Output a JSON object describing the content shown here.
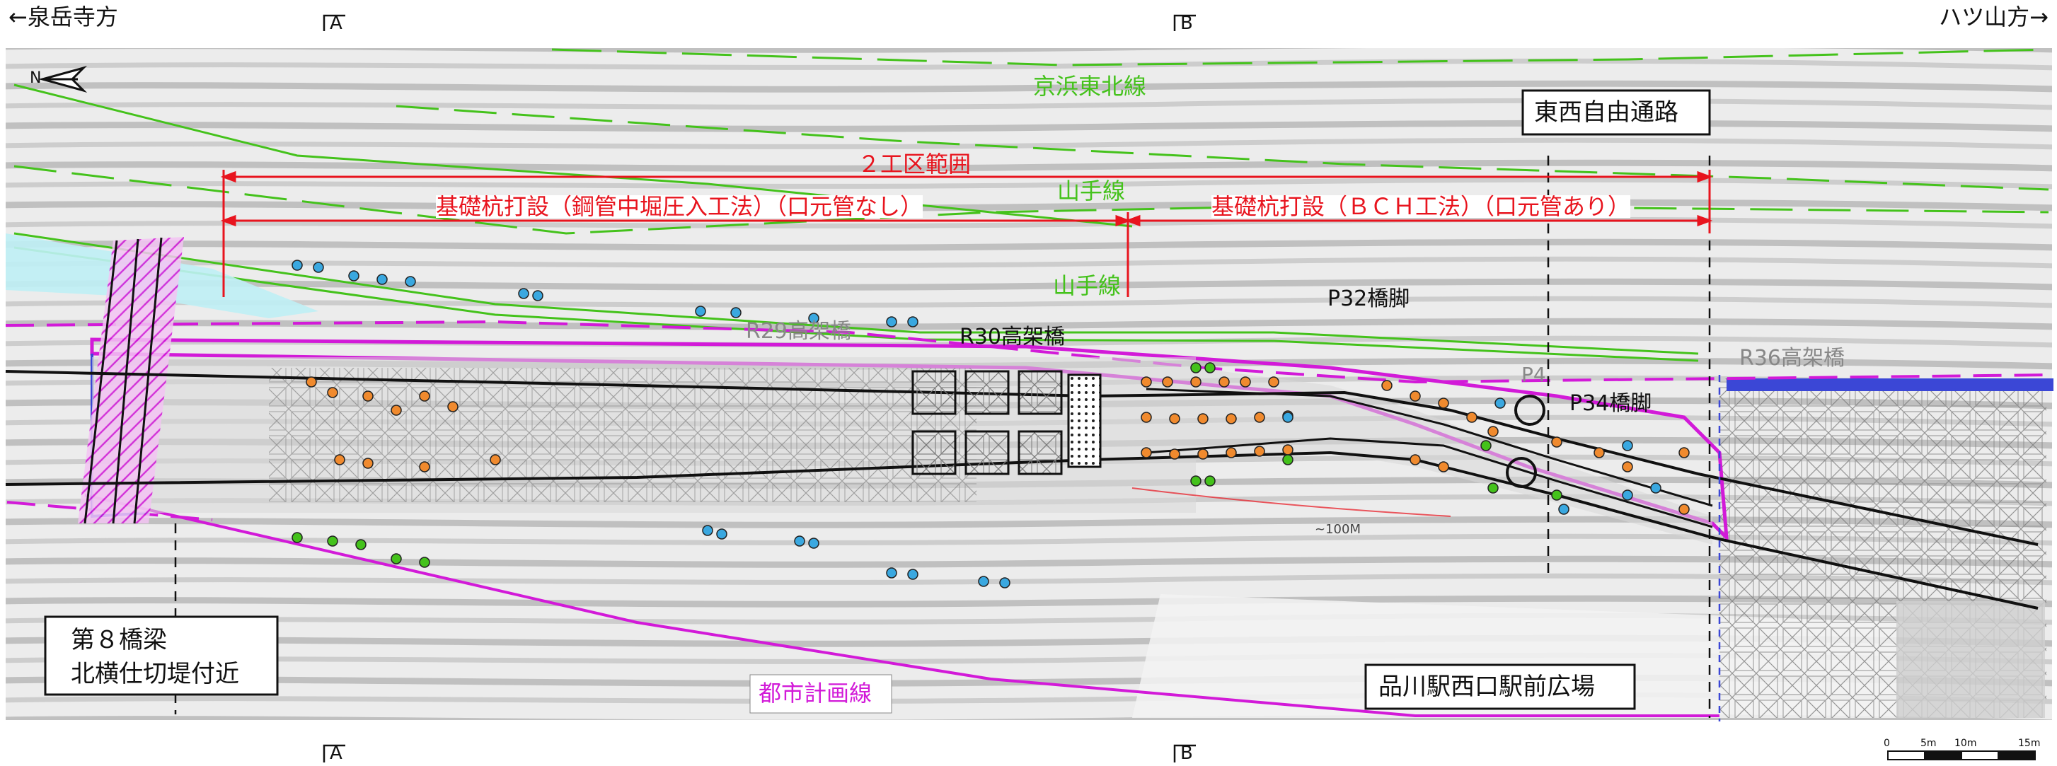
{
  "directions": {
    "left": "←泉岳寺方",
    "right": "ハツ山方→"
  },
  "section_marks": {
    "a_top": "A",
    "b_top": "B",
    "a_bottom": "A",
    "b_bottom": "B"
  },
  "north_label": "N",
  "rail_lines": {
    "keihin_tohoku": "京浜東北線",
    "yamanote_1": "山手線",
    "yamanote_2": "山手線"
  },
  "free_passage": "東西自由通路",
  "work_area": "２工区範囲",
  "pile_method_1": "基礎杭打設（鋼管中堀圧入工法）（口元管なし）",
  "pile_method_2": "基礎杭打設（ＢＣＨ工法）（口元管あり）",
  "bridges": {
    "r29": "R29高架橋",
    "r30": "R30高架橋",
    "r36": "R36高架橋"
  },
  "piers": {
    "p32": "P32橋脚",
    "p34": "P34橋脚",
    "p4": "P4"
  },
  "curve_label": "~100M",
  "city_plan_line": "都市計画線",
  "bridge_note": {
    "line1": "第８橋梁",
    "line2": "北横仕切堤付近"
  },
  "plaza": "品川駅西口駅前広場",
  "scale": {
    "ticks": [
      "0",
      "5m",
      "10m",
      "15m"
    ]
  },
  "colors": {
    "red": "#e8141e",
    "green": "#44c21b",
    "magenta": "#d21ad8",
    "blue": "#2a3ee0",
    "orange": "#f08a2e",
    "cyan": "#3aa8e0"
  }
}
